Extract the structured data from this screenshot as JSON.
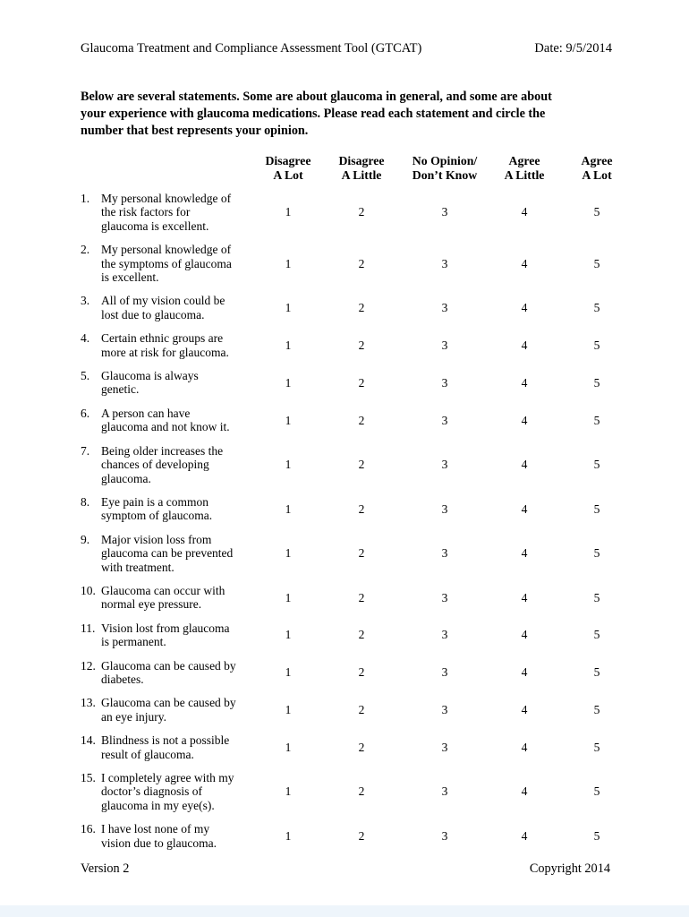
{
  "document": {
    "title": "Glaucoma Treatment and Compliance Assessment Tool (GTCAT)",
    "date": "Date: 9/5/2014",
    "instructions_lines": [
      "Below are several statements. Some are about glaucoma in general, and some are about",
      "your experience with glaucoma medications. Please read each statement and circle the",
      "number that best represents your opinion."
    ],
    "version": "Version 2",
    "copyright": "Copyright 2014"
  },
  "table": {
    "column_headers": [
      {
        "lines": [
          "Disagree",
          "A Lot"
        ]
      },
      {
        "lines": [
          "Disagree",
          "A Little"
        ]
      },
      {
        "lines": [
          "No Opinion/",
          "Don’t Know"
        ]
      },
      {
        "lines": [
          "Agree",
          "A Little"
        ]
      },
      {
        "lines": [
          "Agree",
          "A Lot"
        ]
      }
    ],
    "scale_values": [
      "1",
      "2",
      "3",
      "4",
      "5"
    ],
    "items": [
      {
        "number": "1.",
        "lines": [
          "My personal knowledge of",
          "the risk factors for",
          "glaucoma is excellent."
        ]
      },
      {
        "number": "2.",
        "lines": [
          "My personal knowledge of",
          "the symptoms of glaucoma",
          "is excellent."
        ]
      },
      {
        "number": "3.",
        "lines": [
          "All of my vision could be",
          "lost due to glaucoma."
        ]
      },
      {
        "number": "4.",
        "lines": [
          "Certain ethnic groups are",
          "more at risk for glaucoma."
        ]
      },
      {
        "number": "5.",
        "lines": [
          "Glaucoma is always",
          "genetic."
        ]
      },
      {
        "number": "6.",
        "lines": [
          "A person can have",
          "glaucoma and not know it."
        ]
      },
      {
        "number": "7.",
        "lines": [
          "Being older increases the",
          "chances of developing",
          "glaucoma."
        ]
      },
      {
        "number": "8.",
        "lines": [
          "Eye pain is a common",
          "symptom of glaucoma."
        ]
      },
      {
        "number": "9.",
        "lines": [
          "Major vision loss from",
          "glaucoma can be prevented",
          "with treatment."
        ]
      },
      {
        "number": "10.",
        "lines": [
          "Glaucoma can occur with",
          "normal eye pressure."
        ]
      },
      {
        "number": "11.",
        "lines": [
          "Vision lost from glaucoma",
          "is permanent."
        ]
      },
      {
        "number": "12.",
        "lines": [
          "Glaucoma can be caused by",
          "diabetes."
        ]
      },
      {
        "number": "13.",
        "lines": [
          "Glaucoma can be caused by",
          "an eye injury."
        ]
      },
      {
        "number": "14.",
        "lines": [
          "Blindness is not a possible",
          "result of glaucoma."
        ]
      },
      {
        "number": "15.",
        "lines": [
          "I completely agree with my",
          "doctor’s diagnosis of",
          "glaucoma in my eye(s)."
        ]
      },
      {
        "number": "16.",
        "lines": [
          "I have lost none of my",
          "vision due to glaucoma."
        ]
      }
    ]
  },
  "colors": {
    "page_bg": "#ffffff",
    "text": "#000000",
    "bottom_strip": "#eef5fb"
  }
}
